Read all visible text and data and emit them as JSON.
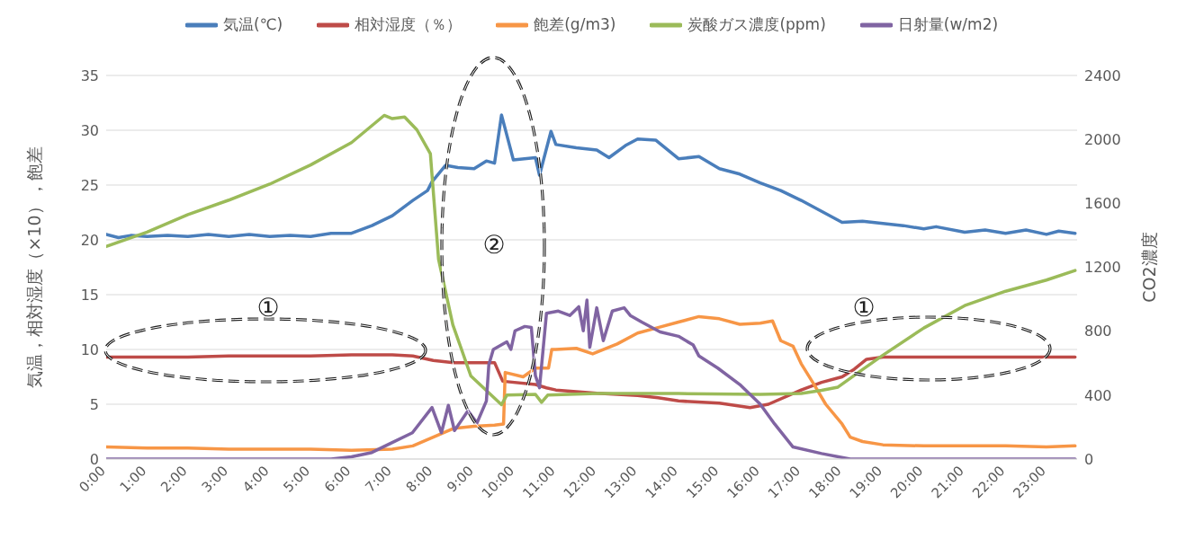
{
  "chart_data": {
    "type": "line",
    "ylabel": "気温，相対湿度（×10），飽差",
    "y2label": "CO2濃度",
    "xlim": [
      0,
      23.75
    ],
    "xticks": [
      {
        "value": 0,
        "label": "0:00"
      },
      {
        "value": 1,
        "label": "1:00"
      },
      {
        "value": 2,
        "label": "2:00"
      },
      {
        "value": 3,
        "label": "3:00"
      },
      {
        "value": 4,
        "label": "4:00"
      },
      {
        "value": 5,
        "label": "5:00"
      },
      {
        "value": 6,
        "label": "6:00"
      },
      {
        "value": 7,
        "label": "7:00"
      },
      {
        "value": 8,
        "label": "8:00"
      },
      {
        "value": 9,
        "label": "9:00"
      },
      {
        "value": 10,
        "label": "10:00"
      },
      {
        "value": 11,
        "label": "11:00"
      },
      {
        "value": 12,
        "label": "12:00"
      },
      {
        "value": 13,
        "label": "13:00"
      },
      {
        "value": 14,
        "label": "14:00"
      },
      {
        "value": 15,
        "label": "15:00"
      },
      {
        "value": 16,
        "label": "16:00"
      },
      {
        "value": 17,
        "label": "17:00"
      },
      {
        "value": 18,
        "label": "18:00"
      },
      {
        "value": 19,
        "label": "19:00"
      },
      {
        "value": 20,
        "label": "20:00"
      },
      {
        "value": 21,
        "label": "21:00"
      },
      {
        "value": 22,
        "label": "22:00"
      },
      {
        "value": 23,
        "label": "23:00"
      }
    ],
    "ylim": [
      0,
      35
    ],
    "yticks": [
      0,
      5,
      10,
      15,
      20,
      25,
      30,
      35
    ],
    "y2lim": [
      0,
      2400
    ],
    "y2ticks": [
      0,
      400,
      800,
      1200,
      1600,
      2000,
      2400
    ],
    "grid": "y",
    "legend": "top",
    "marker": "none",
    "line_style": "solid",
    "annotations": [
      "①",
      "②",
      "①"
    ],
    "series": [
      {
        "name": "気温(℃)",
        "color": "#4a7ebb",
        "x": [
          0,
          0.3,
          0.6,
          1,
          1.5,
          2,
          2.5,
          3,
          3.5,
          4,
          4.5,
          5,
          5.5,
          6,
          6.5,
          7,
          7.5,
          7.86,
          7.97,
          8.3,
          8.6,
          9,
          9.3,
          9.5,
          9.67,
          9.96,
          10.5,
          10.6,
          10.88,
          11,
          11.5,
          12,
          12.3,
          12.7,
          13,
          13.44,
          14,
          14.5,
          15,
          15.5,
          16,
          16.5,
          17,
          17.5,
          18,
          18.5,
          19,
          19.5,
          20,
          20.3,
          21,
          21.5,
          22,
          22.5,
          23,
          23.3,
          23.7
        ],
        "values": [
          20.5,
          20.2,
          20.4,
          20.3,
          20.4,
          20.3,
          20.5,
          20.3,
          20.5,
          20.3,
          20.4,
          20.3,
          20.6,
          20.6,
          21.3,
          22.2,
          23.6,
          24.5,
          25.3,
          26.8,
          26.6,
          26.5,
          27.2,
          27,
          31.4,
          27.3,
          27.5,
          25.9,
          29.9,
          28.7,
          28.4,
          28.2,
          27.5,
          28.6,
          29.2,
          29.1,
          27.4,
          27.6,
          26.5,
          26,
          25.2,
          24.5,
          23.6,
          22.6,
          21.6,
          21.7,
          21.5,
          21.3,
          21,
          21.2,
          20.7,
          20.9,
          20.6,
          20.9,
          20.5,
          20.8,
          20.6
        ]
      },
      {
        "name": "相対湿度（％）",
        "color": "#be4b48",
        "x": [
          0,
          1,
          2,
          3,
          4,
          5,
          6,
          7,
          7.5,
          8,
          8.5,
          9,
          9.5,
          9.7,
          10.5,
          10.77,
          11,
          12,
          13,
          13.5,
          14,
          15,
          15.75,
          16.2,
          17,
          17.5,
          18,
          18.3,
          18.6,
          19,
          20,
          21,
          22,
          23,
          23.7
        ],
        "values": [
          9.3,
          9.3,
          9.3,
          9.4,
          9.4,
          9.4,
          9.5,
          9.5,
          9.4,
          9,
          8.8,
          8.8,
          8.8,
          7.1,
          6.8,
          6.5,
          6.3,
          6,
          5.8,
          5.6,
          5.3,
          5.1,
          4.7,
          5,
          6.3,
          7,
          7.5,
          8.2,
          9.1,
          9.3,
          9.3,
          9.3,
          9.3,
          9.3,
          9.3
        ]
      },
      {
        "name": "飽差(g/m3)",
        "color": "#f79646",
        "x": [
          0,
          1,
          2,
          3,
          4,
          5,
          6,
          7,
          7.5,
          8,
          8.5,
          9,
          9.5,
          9.72,
          9.76,
          10.2,
          10.5,
          10.82,
          10.9,
          11,
          11.5,
          11.9,
          12.5,
          13,
          13.5,
          14,
          14.5,
          15,
          15.5,
          16,
          16.3,
          16.5,
          16.8,
          17,
          17.3,
          17.6,
          18,
          18.2,
          18.5,
          19,
          20,
          21,
          22,
          23,
          23.7
        ],
        "values": [
          1.1,
          1,
          1,
          0.9,
          0.9,
          0.9,
          0.8,
          0.9,
          1.2,
          2,
          2.8,
          3,
          3.1,
          3.2,
          7.9,
          7.5,
          8.3,
          8.3,
          10,
          10,
          10.1,
          9.6,
          10.5,
          11.5,
          12,
          12.5,
          13,
          12.8,
          12.3,
          12.4,
          12.6,
          10.8,
          10.3,
          8.7,
          6.9,
          5,
          3.2,
          2,
          1.6,
          1.3,
          1.2,
          1.2,
          1.2,
          1.1,
          1.2
        ]
      },
      {
        "name": "炭酸ガス濃度(ppm)",
        "color": "#9bbb59",
        "axis": "y2",
        "x": [
          0,
          1,
          2,
          3,
          4,
          5,
          6,
          6.8,
          7,
          7.3,
          7.6,
          7.93,
          8.13,
          8.48,
          8.92,
          9.67,
          9.8,
          10.5,
          10.65,
          10.8,
          12,
          14,
          16,
          17,
          17.5,
          17.9,
          18.5,
          19,
          20,
          21,
          22,
          23,
          23.7
        ],
        "values": [
          1330,
          1420,
          1530,
          1620,
          1720,
          1840,
          1980,
          2150,
          2130,
          2140,
          2060,
          1910,
          1250,
          840,
          520,
          340,
          400,
          405,
          355,
          400,
          410,
          410,
          405,
          410,
          430,
          450,
          560,
          650,
          820,
          960,
          1050,
          1120,
          1180
        ]
      },
      {
        "name": "日射量(w/m2)",
        "color": "#8064a2",
        "x": [
          0,
          5.5,
          6,
          6.5,
          6.94,
          7.49,
          7.97,
          8.2,
          8.37,
          8.52,
          8.85,
          9.07,
          9.3,
          9.36,
          9.47,
          9.8,
          9.9,
          10,
          10.24,
          10.4,
          10.5,
          10.6,
          10.77,
          11.06,
          11.34,
          11.56,
          11.67,
          11.76,
          11.83,
          12,
          12.16,
          12.38,
          12.67,
          12.82,
          13.1,
          13.55,
          14,
          14.36,
          14.5,
          14.96,
          15.5,
          16,
          16.35,
          16.8,
          17.5,
          18.2,
          23.7
        ],
        "values": [
          0,
          0,
          0.2,
          0.6,
          1.4,
          2.4,
          4.7,
          2.4,
          4.9,
          2.6,
          4.4,
          3.3,
          5.3,
          8.6,
          10,
          10.7,
          10,
          11.7,
          12.1,
          12,
          7.6,
          6.5,
          13.3,
          13.5,
          13.1,
          13.9,
          11.7,
          14.5,
          10.2,
          13.8,
          10.8,
          13.5,
          13.8,
          13.1,
          12.5,
          11.6,
          11.2,
          10.4,
          9.4,
          8.3,
          6.8,
          5,
          3.2,
          1.1,
          0.5,
          0,
          0
        ]
      }
    ]
  }
}
